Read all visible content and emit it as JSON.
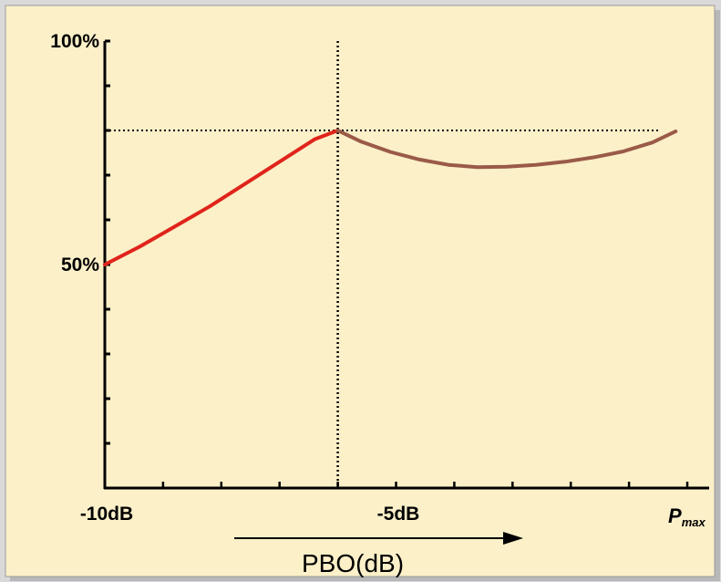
{
  "chart_data": {
    "type": "line",
    "title": "",
    "xlabel": "PBO(dB)",
    "ylabel": "",
    "xlim": [
      -10,
      0
    ],
    "ylim": [
      0,
      100
    ],
    "x_ticks": [
      {
        "x": -10,
        "label": "-10dB"
      },
      {
        "x": -5,
        "label": "-5dB"
      },
      {
        "x": 0,
        "label": "P",
        "sub": "max"
      }
    ],
    "y_ticks": [
      {
        "y": 50,
        "label": "50%"
      },
      {
        "y": 100,
        "label": "100%"
      }
    ],
    "series": [
      {
        "color": "#e0241b",
        "x": [
          -10,
          -9.4,
          -8.8,
          -8.2,
          -7.6,
          -7.0,
          -6.4,
          -6.0
        ],
        "y": [
          50,
          54,
          58.5,
          63,
          68,
          73,
          78,
          80
        ]
      },
      {
        "color": "#9a5a48",
        "x": [
          -6.0,
          -5.6,
          -5.1,
          -4.6,
          -4.1,
          -3.6,
          -3.1,
          -2.6,
          -2.1,
          -1.6,
          -1.1,
          -0.6,
          -0.2
        ],
        "y": [
          80,
          77.5,
          75.2,
          73.5,
          72.3,
          71.8,
          71.9,
          72.3,
          73.0,
          74.0,
          75.3,
          77.3,
          79.8
        ]
      }
    ],
    "reference_lines": {
      "vertical_x": -6.0,
      "horizontal_y": 80
    },
    "arrow": true,
    "colors": {
      "plot_bg": "#fbf0c8",
      "outer_bg": "#d9d9d9",
      "axis": "#000000"
    }
  }
}
